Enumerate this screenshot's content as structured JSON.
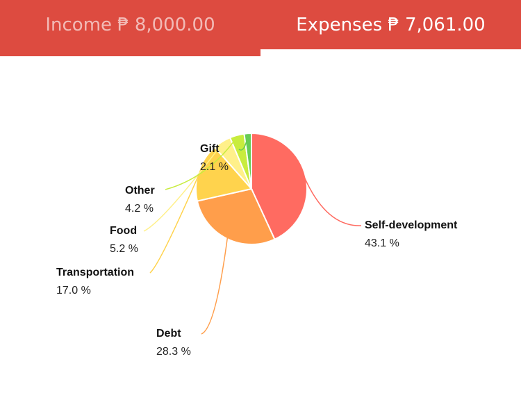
{
  "tabs": {
    "income_label": "Income",
    "income_amount": "₱ 8,000.00",
    "expenses_label": "Expenses",
    "expenses_amount": "₱ 7,061.00",
    "active": "expenses"
  },
  "colors": {
    "header": "#dd4b40",
    "active_indicator": "#ffffff"
  },
  "chart_data": {
    "type": "pie",
    "title": "",
    "slices": [
      {
        "name": "Self-development",
        "value": 43.1,
        "label": "43.1 %",
        "color": "#ff6b61"
      },
      {
        "name": "Debt",
        "value": 28.3,
        "label": "28.3 %",
        "color": "#ff9e4b"
      },
      {
        "name": "Transportation",
        "value": 17.0,
        "label": "17.0 %",
        "color": "#ffd34d"
      },
      {
        "name": "Food",
        "value": 5.2,
        "label": "5.2 %",
        "color": "#fff08a"
      },
      {
        "name": "Other",
        "value": 4.2,
        "label": "4.2 %",
        "color": "#c8ec3e"
      },
      {
        "name": "Gift",
        "value": 2.1,
        "label": "2.1 %",
        "color": "#66cc55"
      }
    ]
  }
}
